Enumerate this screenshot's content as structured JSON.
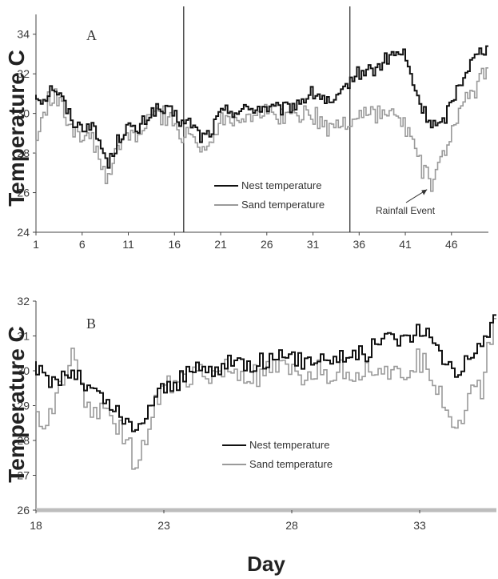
{
  "chart_data": [
    {
      "type": "line",
      "panel_label": "A",
      "ylabel": "Temperature C",
      "xlabel": "",
      "ylim": [
        24,
        35
      ],
      "yticks": [
        24,
        26,
        28,
        30,
        32,
        34
      ],
      "xlim": [
        1,
        50
      ],
      "xticks": [
        1,
        6,
        11,
        16,
        21,
        26,
        31,
        36,
        41,
        46
      ],
      "grid": false,
      "legend": "middle-center",
      "vlines": [
        17,
        35
      ],
      "annotation": {
        "text": "Rainfall Event",
        "target": {
          "x": 43.7,
          "y": 26.4
        }
      },
      "series": [
        {
          "name": "Nest temperature",
          "color": "#111111",
          "x": [
            1,
            2,
            3,
            4,
            5,
            6,
            7,
            8,
            9,
            10,
            11,
            12,
            13,
            14,
            15,
            16,
            17,
            18,
            19,
            20,
            21,
            22,
            23,
            24,
            25,
            26,
            27,
            28,
            29,
            30,
            31,
            32,
            33,
            34,
            35,
            36,
            37,
            38,
            39,
            40,
            41,
            42,
            43,
            44,
            45,
            46,
            47,
            48,
            49,
            50
          ],
          "y": [
            31.0,
            30.7,
            31.4,
            30.7,
            29.7,
            29.3,
            29.5,
            28.6,
            27.4,
            28.6,
            29.4,
            29.0,
            29.7,
            30.2,
            30.1,
            30.0,
            29.5,
            29.5,
            28.8,
            29.0,
            29.9,
            30.2,
            30.1,
            30.2,
            30.3,
            30.3,
            30.2,
            30.2,
            30.4,
            30.7,
            31.0,
            30.9,
            30.4,
            30.7,
            31.6,
            32.0,
            32.2,
            32.2,
            32.7,
            33.0,
            33.0,
            31.5,
            30.2,
            29.5,
            29.3,
            30.4,
            31.5,
            32.4,
            33.0,
            33.4
          ]
        },
        {
          "name": "Sand temperature",
          "color": "#9a9a9a",
          "x": [
            1,
            2,
            3,
            4,
            5,
            6,
            7,
            8,
            9,
            10,
            11,
            12,
            13,
            14,
            15,
            16,
            17,
            18,
            19,
            20,
            21,
            22,
            23,
            24,
            25,
            26,
            27,
            28,
            29,
            30,
            31,
            32,
            33,
            34,
            35,
            36,
            37,
            38,
            39,
            40,
            41,
            42,
            43,
            44,
            45,
            46,
            47,
            48,
            49,
            50
          ],
          "y": [
            28.0,
            30.2,
            31.0,
            30.2,
            29.4,
            29.0,
            28.8,
            27.8,
            26.5,
            28.2,
            29.0,
            28.7,
            29.4,
            30.0,
            29.9,
            29.8,
            28.7,
            29.0,
            28.0,
            28.7,
            29.6,
            29.9,
            29.8,
            29.9,
            30.0,
            30.0,
            29.9,
            29.9,
            29.8,
            30.1,
            30.0,
            29.6,
            29.2,
            29.4,
            29.6,
            29.9,
            30.1,
            30.0,
            30.0,
            29.8,
            29.5,
            28.5,
            27.2,
            26.4,
            27.5,
            28.9,
            29.9,
            30.8,
            31.4,
            32.3
          ]
        }
      ]
    },
    {
      "type": "line",
      "panel_label": "B",
      "ylabel": "Temperature C",
      "xlabel": "Day",
      "ylim": [
        26,
        32
      ],
      "yticks": [
        26,
        27,
        28,
        29,
        30,
        31,
        32
      ],
      "xlim": [
        18,
        36
      ],
      "xticks": [
        18,
        23,
        28,
        33
      ],
      "grid": false,
      "legend": "middle-center",
      "series": [
        {
          "name": "Nest temperature",
          "color": "#111111",
          "x": [
            18,
            18.5,
            19,
            19.5,
            20,
            20.5,
            21,
            21.5,
            22,
            22.5,
            23,
            23.5,
            24,
            24.5,
            25,
            25.5,
            26,
            26.5,
            27,
            27.5,
            28,
            28.5,
            29,
            29.5,
            30,
            30.5,
            31,
            31.5,
            32,
            32.5,
            33,
            33.5,
            34,
            34.5,
            35,
            35.5,
            36
          ],
          "y": [
            30.2,
            29.7,
            29.8,
            30.0,
            29.6,
            29.3,
            29.0,
            28.6,
            28.2,
            29.0,
            29.5,
            29.6,
            29.9,
            30.1,
            30.0,
            30.2,
            30.3,
            30.2,
            30.3,
            30.4,
            30.3,
            30.3,
            30.4,
            30.4,
            30.4,
            30.5,
            30.5,
            30.9,
            31.0,
            30.9,
            31.2,
            30.9,
            30.4,
            30.0,
            30.4,
            30.6,
            31.6
          ]
        },
        {
          "name": "Sand temperature",
          "color": "#9a9a9a",
          "x": [
            18,
            18.5,
            19,
            19.5,
            20,
            20.5,
            21,
            21.5,
            22,
            22.5,
            23,
            23.5,
            24,
            24.5,
            25,
            25.5,
            26,
            26.5,
            27,
            27.5,
            28,
            28.5,
            29,
            29.5,
            30,
            30.5,
            31,
            31.5,
            32,
            32.5,
            33,
            33.5,
            34,
            34.5,
            35,
            35.5,
            36
          ],
          "y": [
            29.0,
            28.3,
            29.4,
            30.5,
            29.1,
            28.9,
            28.6,
            28.2,
            27.3,
            28.5,
            29.4,
            29.8,
            29.8,
            29.9,
            29.8,
            30.0,
            29.9,
            29.8,
            29.9,
            30.0,
            29.9,
            29.8,
            30.0,
            29.9,
            30.0,
            30.0,
            30.0,
            30.2,
            29.8,
            29.9,
            30.3,
            30.0,
            29.2,
            28.3,
            29.3,
            29.5,
            31.5
          ]
        }
      ]
    }
  ]
}
